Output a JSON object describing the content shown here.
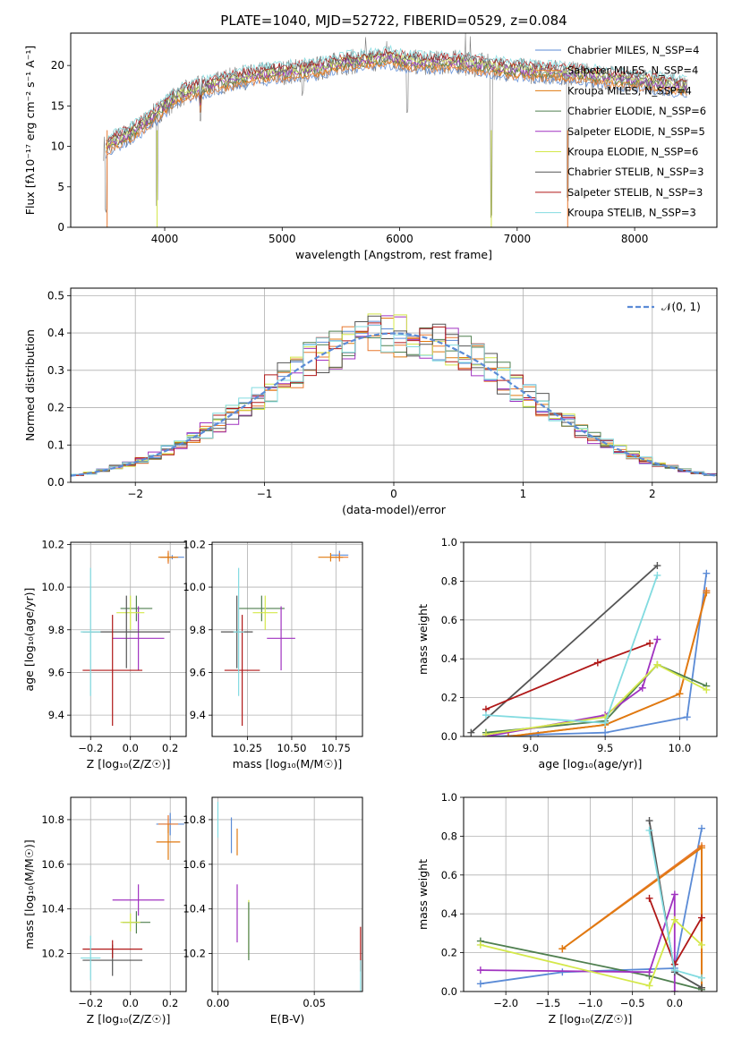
{
  "colors": {
    "Chabrier MILES": "#5b8bd6",
    "Salpeter MILES": "#e8782f",
    "Kroupa MILES": "#e07a10",
    "Chabrier ELODIE": "#4f7f4f",
    "Salpeter ELODIE": "#a032c0",
    "Kroupa ELODIE": "#d4e84a",
    "Chabrier STELIB": "#555555",
    "Salpeter STELIB": "#b01818",
    "Kroupa STELIB": "#82dbe0",
    "normal_fit": "#5b8bd6"
  },
  "chart_data": [
    {
      "id": "spectrum",
      "type": "line",
      "title": "PLATE=1040, MJD=52722, FIBERID=0529, z=0.084",
      "xlabel": "wavelength [Angstrom, rest frame]",
      "ylabel": "Flux [fλ10⁻¹⁷ erg cm⁻² s⁻¹ A⁻¹]",
      "xlim": [
        3200,
        8700
      ],
      "ylim": [
        0,
        24
      ],
      "xticks": [
        "4000",
        "5000",
        "6000",
        "7000",
        "8000"
      ],
      "yticks": [
        "0",
        "5",
        "10",
        "15",
        "20"
      ],
      "legend_position": "right",
      "legend": [
        "Chabrier MILES, N_SSP=4",
        "Salpeter MILES, N_SSP=4",
        "Kroupa MILES, N_SSP=4",
        "Chabrier ELODIE, N_SSP=6",
        "Salpeter ELODIE, N_SSP=5",
        "Kroupa ELODIE, N_SSP=6",
        "Chabrier STELIB, N_SSP=3",
        "Salpeter STELIB, N_SSP=3",
        "Kroupa STELIB, N_SSP=3"
      ],
      "continuum": {
        "x": [
          3450,
          3550,
          3700,
          3850,
          4000,
          4150,
          4300,
          4500,
          4700,
          4900,
          5100,
          5300,
          5500,
          5700,
          5900,
          6100,
          6300,
          6500,
          6700,
          6900,
          7100,
          7300,
          7500,
          7700,
          7900,
          8100,
          8300,
          8450
        ],
        "y": [
          9.5,
          10.5,
          11.5,
          13,
          15,
          16.5,
          17.2,
          18,
          18.6,
          19,
          19.3,
          19.6,
          20.3,
          20.6,
          21,
          20.4,
          20.3,
          20.4,
          20,
          19.6,
          19.3,
          19.2,
          19,
          18.6,
          18.3,
          18,
          17.6,
          17.3
        ]
      },
      "absorption_dips": [
        [
          3500,
          1.5
        ],
        [
          3935,
          2.5
        ],
        [
          4305,
          13
        ],
        [
          5175,
          16
        ],
        [
          6065,
          14
        ],
        [
          6780,
          1
        ],
        [
          7430,
          3
        ]
      ],
      "spikes": [
        [
          5710,
          23.5
        ],
        [
          5890,
          23
        ],
        [
          6560,
          24
        ],
        [
          6600,
          23.6
        ]
      ]
    },
    {
      "id": "residuals",
      "type": "histogram",
      "xlabel": "(data-model)/error",
      "ylabel": "Normed distribution",
      "xlim": [
        -2.5,
        2.5
      ],
      "ylim": [
        0,
        0.52
      ],
      "xticks": [
        "−2",
        "−1",
        "0",
        "1",
        "2"
      ],
      "yticks": [
        "0.0",
        "0.1",
        "0.2",
        "0.3",
        "0.4",
        "0.5"
      ],
      "legend": [
        "𝒩(0, 1)"
      ],
      "legend_position": "top-right",
      "bin_width": 0.1
    },
    {
      "id": "age-vs-Z",
      "type": "errorbar",
      "xlabel": "Z [log₁₀(Z/Z☉)]",
      "ylabel": "age  [log₁₀(age/yr)]",
      "xlim": [
        -0.3,
        0.28
      ],
      "ylim": [
        9.3,
        10.21
      ],
      "xticks": [
        "−0.2",
        "0.0",
        "0.2"
      ],
      "yticks": [
        "9.4",
        "9.6",
        "9.8",
        "10.0",
        "10.2"
      ],
      "points": [
        {
          "model": "Chabrier MILES",
          "x": 0.21,
          "y": 10.14,
          "xerr": 0.06,
          "yerr": 0.01
        },
        {
          "model": "Salpeter MILES",
          "x": 0.19,
          "y": 10.14,
          "xerr": 0.04,
          "yerr": 0.03
        },
        {
          "model": "Kroupa MILES",
          "x": 0.19,
          "y": 10.14,
          "xerr": 0.05,
          "yerr": 0.02
        },
        {
          "model": "Chabrier ELODIE",
          "x": 0.03,
          "y": 9.9,
          "xerr": 0.08,
          "yerr": 0.06
        },
        {
          "model": "Salpeter ELODIE",
          "x": 0.04,
          "y": 9.76,
          "xerr": 0.13,
          "yerr": 0.15
        },
        {
          "model": "Kroupa ELODIE",
          "x": 0.0,
          "y": 9.88,
          "xerr": 0.07,
          "yerr": 0.08
        },
        {
          "model": "Chabrier STELIB",
          "x": -0.02,
          "y": 9.79,
          "xerr": 0.22,
          "yerr": 0.17
        },
        {
          "model": "Salpeter STELIB",
          "x": -0.09,
          "y": 9.61,
          "xerr": 0.15,
          "yerr": 0.26
        },
        {
          "model": "Kroupa STELIB",
          "x": -0.2,
          "y": 9.79,
          "xerr": 0.05,
          "yerr": 0.3
        }
      ]
    },
    {
      "id": "age-vs-mass",
      "type": "errorbar",
      "xlabel": "mass [log₁₀(M/M☉)]",
      "ylabel": "",
      "xlim": [
        10.05,
        10.9
      ],
      "ylim": [
        9.3,
        10.21
      ],
      "xticks": [
        "10.25",
        "10.50",
        "10.75"
      ],
      "yticks": [
        "9.4",
        "9.6",
        "9.8",
        "10.0",
        "10.2"
      ],
      "points": [
        {
          "model": "Chabrier MILES",
          "x": 10.77,
          "y": 10.15,
          "xerr": 0.05,
          "yerr": 0.02
        },
        {
          "model": "Salpeter MILES",
          "x": 10.77,
          "y": 10.14,
          "xerr": 0.05,
          "yerr": 0.02
        },
        {
          "model": "Kroupa MILES",
          "x": 10.72,
          "y": 10.14,
          "xerr": 0.07,
          "yerr": 0.02
        },
        {
          "model": "Chabrier ELODIE",
          "x": 10.33,
          "y": 9.9,
          "xerr": 0.13,
          "yerr": 0.06
        },
        {
          "model": "Salpeter ELODIE",
          "x": 10.44,
          "y": 9.76,
          "xerr": 0.08,
          "yerr": 0.15
        },
        {
          "model": "Kroupa ELODIE",
          "x": 10.35,
          "y": 9.88,
          "xerr": 0.07,
          "yerr": 0.08
        },
        {
          "model": "Chabrier STELIB",
          "x": 10.19,
          "y": 9.79,
          "xerr": 0.09,
          "yerr": 0.17
        },
        {
          "model": "Salpeter STELIB",
          "x": 10.22,
          "y": 9.61,
          "xerr": 0.1,
          "yerr": 0.26
        },
        {
          "model": "Kroupa STELIB",
          "x": 10.2,
          "y": 9.79,
          "xerr": 0.03,
          "yerr": 0.3
        }
      ]
    },
    {
      "id": "mass-vs-Z",
      "type": "errorbar",
      "xlabel": "Z [log₁₀(Z/Z☉)]",
      "ylabel": "mass [log₁₀(M/M☉)]",
      "xlim": [
        -0.3,
        0.28
      ],
      "ylim": [
        10.03,
        10.9
      ],
      "xticks": [
        "−0.2",
        "0.0",
        "0.2"
      ],
      "yticks": [
        "10.2",
        "10.4",
        "10.6",
        "10.8"
      ],
      "points": [
        {
          "model": "Chabrier MILES",
          "x": 0.2,
          "y": 10.78,
          "xerr": 0.07,
          "yerr": 0.05
        },
        {
          "model": "Salpeter MILES",
          "x": 0.19,
          "y": 10.78,
          "xerr": 0.05,
          "yerr": 0.04
        },
        {
          "model": "Kroupa MILES",
          "x": 0.19,
          "y": 10.7,
          "xerr": 0.06,
          "yerr": 0.08
        },
        {
          "model": "Chabrier ELODIE",
          "x": 0.03,
          "y": 10.34,
          "xerr": 0.07,
          "yerr": 0.05
        },
        {
          "model": "Salpeter ELODIE",
          "x": 0.04,
          "y": 10.44,
          "xerr": 0.13,
          "yerr": 0.07
        },
        {
          "model": "Kroupa ELODIE",
          "x": 0.0,
          "y": 10.34,
          "xerr": 0.05,
          "yerr": 0.04
        },
        {
          "model": "Chabrier STELIB",
          "x": -0.09,
          "y": 10.17,
          "xerr": 0.15,
          "yerr": 0.07
        },
        {
          "model": "Salpeter STELIB",
          "x": -0.09,
          "y": 10.22,
          "xerr": 0.15,
          "yerr": 0.04
        },
        {
          "model": "Kroupa STELIB",
          "x": -0.2,
          "y": 10.18,
          "xerr": 0.05,
          "yerr": 0.1
        }
      ]
    },
    {
      "id": "mass-vs-EBV",
      "type": "errorbar",
      "xlabel": "E(B-V)",
      "ylabel": "",
      "xlim": [
        -0.003,
        0.075
      ],
      "ylim": [
        10.03,
        10.9
      ],
      "xticks": [
        "0.00",
        "0.05"
      ],
      "yticks": [
        "10.2",
        "10.4",
        "10.6",
        "10.8"
      ],
      "points": [
        {
          "model": "Kroupa STELIB",
          "x": 0.0,
          "y": 10.8,
          "xerr": 0,
          "yerr": 0.08
        },
        {
          "model": "Chabrier MILES",
          "x": 0.007,
          "y": 10.73,
          "xerr": 0,
          "yerr": 0.08
        },
        {
          "model": "Kroupa MILES",
          "x": 0.01,
          "y": 10.7,
          "xerr": 0,
          "yerr": 0.06
        },
        {
          "model": "Salpeter ELODIE",
          "x": 0.01,
          "y": 10.38,
          "xerr": 0,
          "yerr": 0.13
        },
        {
          "model": "Kroupa ELODIE",
          "x": 0.016,
          "y": 10.31,
          "xerr": 0,
          "yerr": 0.13
        },
        {
          "model": "Chabrier ELODIE",
          "x": 0.016,
          "y": 10.3,
          "xerr": 0,
          "yerr": 0.13
        },
        {
          "model": "Salpeter STELIB",
          "x": 0.074,
          "y": 10.22,
          "xerr": 0,
          "yerr": 0.1
        },
        {
          "model": "Kroupa STELIB",
          "x": 0.074,
          "y": 10.1,
          "xerr": 0,
          "yerr": 0.07
        }
      ]
    },
    {
      "id": "weight-vs-age",
      "type": "line",
      "xlabel": "age  [log₁₀(age/yr)]",
      "ylabel": "mass weight",
      "xlim": [
        8.55,
        10.25
      ],
      "ylim": [
        0,
        1
      ],
      "xticks": [
        "9.0",
        "9.5",
        "10.0"
      ],
      "yticks": [
        "0.0",
        "0.2",
        "0.4",
        "0.6",
        "0.8",
        "1.0"
      ],
      "series": [
        {
          "model": "Chabrier MILES",
          "x": [
            8.75,
            9.05,
            9.5,
            10.05,
            10.18
          ],
          "y": [
            0.0,
            0.01,
            0.02,
            0.1,
            0.84
          ]
        },
        {
          "model": "Salpeter MILES",
          "x": [
            8.85,
            9.5,
            10.0,
            10.18
          ],
          "y": [
            0.0,
            0.06,
            0.22,
            0.75
          ]
        },
        {
          "model": "Kroupa MILES",
          "x": [
            8.85,
            9.5,
            10.0,
            10.18
          ],
          "y": [
            0.0,
            0.06,
            0.22,
            0.74
          ]
        },
        {
          "model": "Chabrier ELODIE",
          "x": [
            8.7,
            9.5,
            9.85,
            10.18
          ],
          "y": [
            0.02,
            0.08,
            0.37,
            0.26
          ]
        },
        {
          "model": "Salpeter ELODIE",
          "x": [
            8.7,
            9.5,
            9.75,
            9.85
          ],
          "y": [
            0.0,
            0.11,
            0.25,
            0.5
          ]
        },
        {
          "model": "Kroupa ELODIE",
          "x": [
            8.7,
            9.5,
            9.85,
            10.18
          ],
          "y": [
            0.01,
            0.1,
            0.37,
            0.24
          ]
        },
        {
          "model": "Chabrier STELIB",
          "x": [
            8.6,
            9.85
          ],
          "y": [
            0.02,
            0.88
          ]
        },
        {
          "model": "Salpeter STELIB",
          "x": [
            8.7,
            9.45,
            9.8
          ],
          "y": [
            0.14,
            0.38,
            0.48
          ]
        },
        {
          "model": "Kroupa STELIB",
          "x": [
            8.7,
            9.5,
            9.85
          ],
          "y": [
            0.11,
            0.07,
            0.83
          ]
        }
      ]
    },
    {
      "id": "weight-vs-Z",
      "type": "line",
      "xlabel": "Z [log₁₀(Z/Z☉)]",
      "ylabel": "mass weight",
      "xlim": [
        -2.5,
        0.5
      ],
      "ylim": [
        0,
        1
      ],
      "xticks": [
        "−2.0",
        "−1.5",
        "−1.0",
        "−0.5",
        "0.0"
      ],
      "yticks": [
        "0.0",
        "0.2",
        "0.4",
        "0.6",
        "0.8",
        "1.0"
      ],
      "series": [
        {
          "model": "Chabrier MILES",
          "x": [
            -2.3,
            -1.33,
            0.0,
            0.32
          ],
          "y": [
            0.04,
            0.1,
            0.12,
            0.84
          ]
        },
        {
          "model": "Salpeter MILES",
          "x": [
            -1.33,
            0.32,
            0.32
          ],
          "y": [
            0.22,
            0.75,
            0.02
          ]
        },
        {
          "model": "Kroupa MILES",
          "x": [
            -1.33,
            0.32,
            0.32
          ],
          "y": [
            0.22,
            0.74,
            0.02
          ]
        },
        {
          "model": "Chabrier ELODIE",
          "x": [
            -2.3,
            -0.3,
            0.32
          ],
          "y": [
            0.26,
            0.08,
            0.01
          ]
        },
        {
          "model": "Salpeter ELODIE",
          "x": [
            -2.3,
            -0.3,
            0.0,
            0.0
          ],
          "y": [
            0.11,
            0.1,
            0.5,
            0.0
          ]
        },
        {
          "model": "Kroupa ELODIE",
          "x": [
            -2.3,
            -0.3,
            0.0,
            0.32
          ],
          "y": [
            0.24,
            0.03,
            0.37,
            0.24
          ]
        },
        {
          "model": "Chabrier STELIB",
          "x": [
            -0.3,
            0.0,
            0.32
          ],
          "y": [
            0.88,
            0.1,
            0.02
          ]
        },
        {
          "model": "Salpeter STELIB",
          "x": [
            -0.3,
            0.0,
            0.32
          ],
          "y": [
            0.48,
            0.14,
            0.38
          ]
        },
        {
          "model": "Kroupa STELIB",
          "x": [
            -0.3,
            0.0,
            0.32
          ],
          "y": [
            0.83,
            0.11,
            0.07
          ]
        }
      ]
    }
  ]
}
